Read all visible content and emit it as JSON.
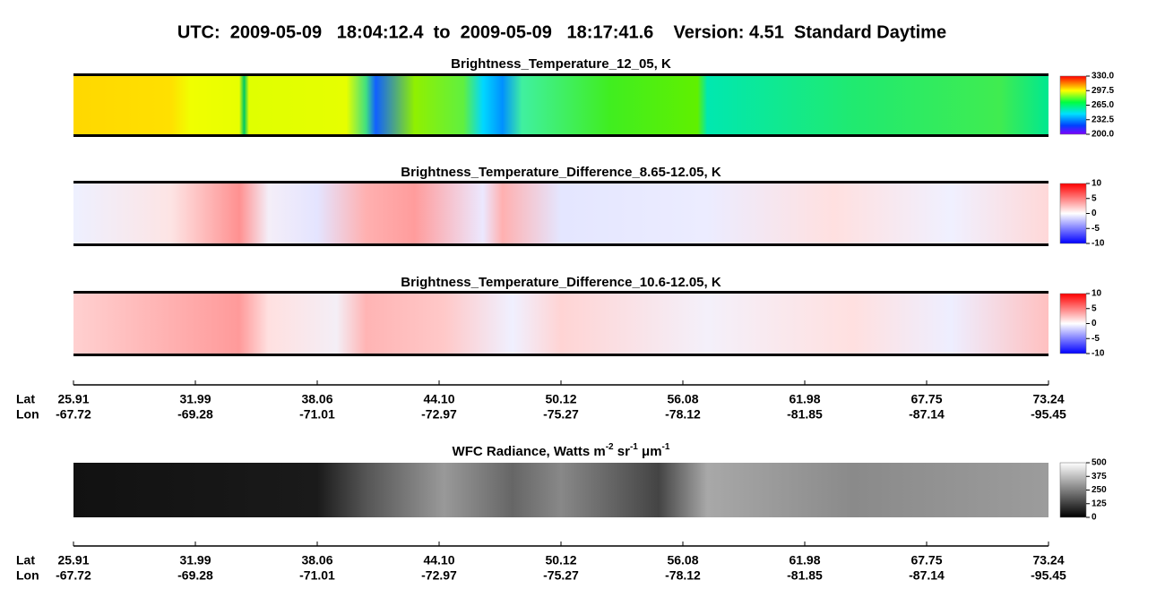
{
  "title": "UTC:  2009-05-09   18:04:12.4  to  2009-05-09   18:17:41.6    Version: 4.51  Standard Daytime",
  "panels": [
    {
      "title": [
        "Brightness_Temperature_12_05, K"
      ],
      "colorbar": {
        "lim": [
          200,
          330
        ],
        "ticks": [
          {
            "value": 200,
            "label": "200.0"
          },
          232.5,
          {
            "value": 265,
            "label": "265.0"
          },
          297.5,
          {
            "value": 330,
            "label": "330.0"
          }
        ]
      }
    },
    {
      "title": [
        "Brightness_Temperature_Difference_8.65-12.05, K"
      ],
      "colorbar": {
        "lim": [
          -10,
          10
        ],
        "ticks": [
          -10,
          -5,
          0,
          5,
          10
        ]
      }
    },
    {
      "title": [
        "Brightness_Temperature_Difference_10.6-12.05, K"
      ],
      "colorbar": {
        "lim": [
          -10,
          10
        ],
        "ticks": [
          -10,
          -5,
          0,
          5,
          10
        ]
      }
    },
    {
      "title": [
        "WFC Radiance, Watts m",
        "-2",
        " sr",
        "-1",
        " μm",
        "-1"
      ],
      "colorbar": {
        "lim": [
          0,
          500
        ],
        "ticks": [
          0,
          125,
          250,
          375,
          500
        ]
      }
    }
  ],
  "position_axes": [
    {
      "lat_label": "Lat",
      "lon_label": "Lon",
      "lat": [
        25.91,
        31.99,
        38.06,
        44.1,
        50.12,
        56.08,
        61.98,
        67.75,
        73.24
      ],
      "lon": [
        -67.72,
        -69.28,
        -71.01,
        -72.97,
        -75.27,
        -78.12,
        -81.85,
        -87.14,
        -95.45
      ]
    },
    {
      "lat_label": "Lat",
      "lon_label": "Lon",
      "lat": [
        25.91,
        31.99,
        38.06,
        44.1,
        50.12,
        56.08,
        61.98,
        67.75,
        73.24
      ],
      "lon": [
        -67.72,
        -69.28,
        -71.01,
        -72.97,
        -75.27,
        -78.12,
        -81.85,
        -87.14,
        -95.45
      ]
    }
  ]
}
